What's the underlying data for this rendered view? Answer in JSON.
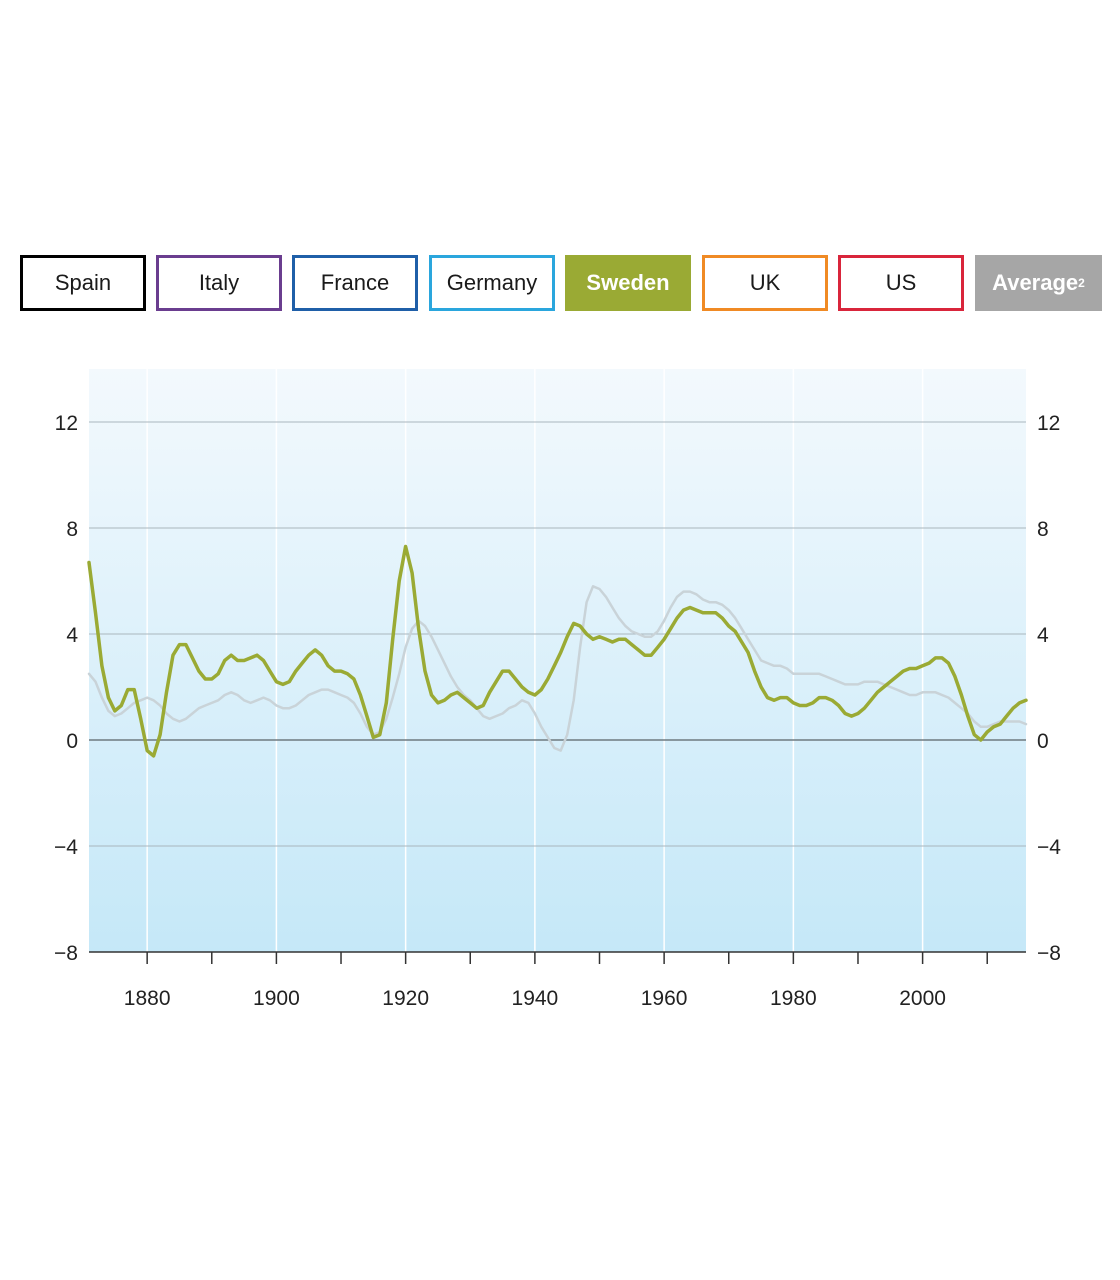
{
  "tabs": [
    {
      "label": "Spain",
      "color": "#000000",
      "active": false
    },
    {
      "label": "Italy",
      "color": "#6a3d8f",
      "active": false
    },
    {
      "label": "France",
      "color": "#1f5fa8",
      "active": false
    },
    {
      "label": "Germany",
      "color": "#2aa6dd",
      "active": false
    },
    {
      "label": "Sweden",
      "color": "#9aaa34",
      "active": true
    },
    {
      "label": "UK",
      "color": "#f08a24",
      "active": false
    },
    {
      "label": "US",
      "color": "#d9253b",
      "active": false
    },
    {
      "label": "Average",
      "superscript": "2",
      "color": "#a6a6a6",
      "active": true
    }
  ],
  "chart_data": {
    "type": "line",
    "title": "",
    "xlabel": "",
    "ylabel": "",
    "xlim": [
      1871,
      2016
    ],
    "ylim": [
      -8,
      14
    ],
    "y_ticks": [
      -8,
      -4,
      0,
      4,
      8,
      12
    ],
    "x_tick_labels": [
      1880,
      1900,
      1920,
      1940,
      1960,
      1980,
      2000
    ],
    "x_minor_ticks": [
      1880,
      1890,
      1900,
      1910,
      1920,
      1930,
      1940,
      1950,
      1960,
      1970,
      1980,
      1990,
      2000,
      2010
    ],
    "grid": true,
    "background_gradient": [
      "#f3f9fd",
      "#c5e8f8"
    ],
    "series": [
      {
        "name": "Average",
        "color": "#c9d3d8",
        "x": [
          1871,
          1872,
          1873,
          1874,
          1875,
          1876,
          1877,
          1878,
          1879,
          1880,
          1881,
          1882,
          1883,
          1884,
          1885,
          1886,
          1887,
          1888,
          1889,
          1890,
          1891,
          1892,
          1893,
          1894,
          1895,
          1896,
          1897,
          1898,
          1899,
          1900,
          1901,
          1902,
          1903,
          1904,
          1905,
          1906,
          1907,
          1908,
          1909,
          1910,
          1911,
          1912,
          1913,
          1914,
          1915,
          1916,
          1917,
          1918,
          1919,
          1920,
          1921,
          1922,
          1923,
          1924,
          1925,
          1926,
          1927,
          1928,
          1929,
          1930,
          1931,
          1932,
          1933,
          1934,
          1935,
          1936,
          1937,
          1938,
          1939,
          1940,
          1941,
          1942,
          1943,
          1944,
          1945,
          1946,
          1947,
          1948,
          1949,
          1950,
          1951,
          1952,
          1953,
          1954,
          1955,
          1956,
          1957,
          1958,
          1959,
          1960,
          1961,
          1962,
          1963,
          1964,
          1965,
          1966,
          1967,
          1968,
          1969,
          1970,
          1971,
          1972,
          1973,
          1974,
          1975,
          1976,
          1977,
          1978,
          1979,
          1980,
          1981,
          1982,
          1983,
          1984,
          1985,
          1986,
          1987,
          1988,
          1989,
          1990,
          1991,
          1992,
          1993,
          1994,
          1995,
          1996,
          1997,
          1998,
          1999,
          2000,
          2001,
          2002,
          2003,
          2004,
          2005,
          2006,
          2007,
          2008,
          2009,
          2010,
          2011,
          2012,
          2013,
          2014,
          2015,
          2016
        ],
        "y": [
          2.5,
          2.2,
          1.6,
          1.1,
          0.9,
          1.0,
          1.2,
          1.4,
          1.5,
          1.6,
          1.5,
          1.3,
          1.0,
          0.8,
          0.7,
          0.8,
          1.0,
          1.2,
          1.3,
          1.4,
          1.5,
          1.7,
          1.8,
          1.7,
          1.5,
          1.4,
          1.5,
          1.6,
          1.5,
          1.3,
          1.2,
          1.2,
          1.3,
          1.5,
          1.7,
          1.8,
          1.9,
          1.9,
          1.8,
          1.7,
          1.6,
          1.4,
          1.0,
          0.5,
          0.2,
          0.3,
          0.8,
          1.6,
          2.5,
          3.5,
          4.2,
          4.5,
          4.3,
          3.9,
          3.4,
          2.9,
          2.4,
          2.0,
          1.7,
          1.5,
          1.2,
          0.9,
          0.8,
          0.9,
          1.0,
          1.2,
          1.3,
          1.5,
          1.4,
          1.0,
          0.5,
          0.1,
          -0.3,
          -0.4,
          0.2,
          1.5,
          3.5,
          5.2,
          5.8,
          5.7,
          5.4,
          5.0,
          4.6,
          4.3,
          4.1,
          4.0,
          3.9,
          3.9,
          4.1,
          4.5,
          5.0,
          5.4,
          5.6,
          5.6,
          5.5,
          5.3,
          5.2,
          5.2,
          5.1,
          4.9,
          4.6,
          4.2,
          3.8,
          3.4,
          3.0,
          2.9,
          2.8,
          2.8,
          2.7,
          2.5,
          2.5,
          2.5,
          2.5,
          2.5,
          2.4,
          2.3,
          2.2,
          2.1,
          2.1,
          2.1,
          2.2,
          2.2,
          2.2,
          2.1,
          2.0,
          1.9,
          1.8,
          1.7,
          1.7,
          1.8,
          1.8,
          1.8,
          1.7,
          1.6,
          1.4,
          1.2,
          1.0,
          0.7,
          0.5,
          0.5,
          0.6,
          0.7,
          0.7,
          0.7,
          0.7,
          0.6
        ]
      },
      {
        "name": "Sweden",
        "color": "#9aaa34",
        "x": [
          1871,
          1872,
          1873,
          1874,
          1875,
          1876,
          1877,
          1878,
          1879,
          1880,
          1881,
          1882,
          1883,
          1884,
          1885,
          1886,
          1887,
          1888,
          1889,
          1890,
          1891,
          1892,
          1893,
          1894,
          1895,
          1896,
          1897,
          1898,
          1899,
          1900,
          1901,
          1902,
          1903,
          1904,
          1905,
          1906,
          1907,
          1908,
          1909,
          1910,
          1911,
          1912,
          1913,
          1914,
          1915,
          1916,
          1917,
          1918,
          1919,
          1920,
          1921,
          1922,
          1923,
          1924,
          1925,
          1926,
          1927,
          1928,
          1929,
          1930,
          1931,
          1932,
          1933,
          1934,
          1935,
          1936,
          1937,
          1938,
          1939,
          1940,
          1941,
          1942,
          1943,
          1944,
          1945,
          1946,
          1947,
          1948,
          1949,
          1950,
          1951,
          1952,
          1953,
          1954,
          1955,
          1956,
          1957,
          1958,
          1959,
          1960,
          1961,
          1962,
          1963,
          1964,
          1965,
          1966,
          1967,
          1968,
          1969,
          1970,
          1971,
          1972,
          1973,
          1974,
          1975,
          1976,
          1977,
          1978,
          1979,
          1980,
          1981,
          1982,
          1983,
          1984,
          1985,
          1986,
          1987,
          1988,
          1989,
          1990,
          1991,
          1992,
          1993,
          1994,
          1995,
          1996,
          1997,
          1998,
          1999,
          2000,
          2001,
          2002,
          2003,
          2004,
          2005,
          2006,
          2007,
          2008,
          2009,
          2010,
          2011,
          2012,
          2013,
          2014,
          2015,
          2016
        ],
        "y": [
          6.7,
          4.8,
          2.8,
          1.6,
          1.1,
          1.3,
          1.9,
          1.9,
          0.8,
          -0.4,
          -0.6,
          0.2,
          1.8,
          3.2,
          3.6,
          3.6,
          3.1,
          2.6,
          2.3,
          2.3,
          2.5,
          3.0,
          3.2,
          3.0,
          3.0,
          3.1,
          3.2,
          3.0,
          2.6,
          2.2,
          2.1,
          2.2,
          2.6,
          2.9,
          3.2,
          3.4,
          3.2,
          2.8,
          2.6,
          2.6,
          2.5,
          2.3,
          1.7,
          0.9,
          0.1,
          0.2,
          1.4,
          3.8,
          6.0,
          7.3,
          6.3,
          4.2,
          2.6,
          1.7,
          1.4,
          1.5,
          1.7,
          1.8,
          1.6,
          1.4,
          1.2,
          1.3,
          1.8,
          2.2,
          2.6,
          2.6,
          2.3,
          2.0,
          1.8,
          1.7,
          1.9,
          2.3,
          2.8,
          3.3,
          3.9,
          4.4,
          4.3,
          4.0,
          3.8,
          3.9,
          3.8,
          3.7,
          3.8,
          3.8,
          3.6,
          3.4,
          3.2,
          3.2,
          3.5,
          3.8,
          4.2,
          4.6,
          4.9,
          5.0,
          4.9,
          4.8,
          4.8,
          4.8,
          4.6,
          4.3,
          4.1,
          3.7,
          3.3,
          2.6,
          2.0,
          1.6,
          1.5,
          1.6,
          1.6,
          1.4,
          1.3,
          1.3,
          1.4,
          1.6,
          1.6,
          1.5,
          1.3,
          1.0,
          0.9,
          1.0,
          1.2,
          1.5,
          1.8,
          2.0,
          2.2,
          2.4,
          2.6,
          2.7,
          2.7,
          2.8,
          2.9,
          3.1,
          3.1,
          2.9,
          2.4,
          1.7,
          0.9,
          0.2,
          0.0,
          0.3,
          0.5,
          0.6,
          0.9,
          1.2,
          1.4,
          1.5
        ]
      }
    ]
  }
}
